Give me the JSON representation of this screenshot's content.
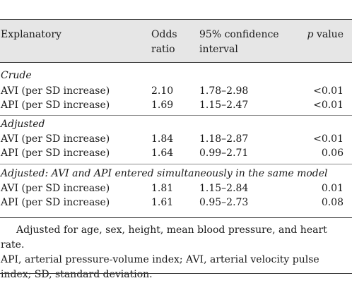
{
  "table": {
    "headers": {
      "explanatory": "Explanatory",
      "odds_ratio": "Odds\nratio",
      "ci": "95% confidence\ninterval",
      "p_value_italic": "p",
      "p_value_rest": " value"
    },
    "sections": [
      {
        "title": "Crude",
        "rows": [
          {
            "label": "AVI (per SD increase)",
            "or": "2.10",
            "ci": "1.78–2.98",
            "p": "<0.01"
          },
          {
            "label": "API (per SD increase)",
            "or": "1.69",
            "ci": "1.15–2.47",
            "p": "<0.01"
          }
        ]
      },
      {
        "title": "Adjusted",
        "rows": [
          {
            "label": "AVI (per SD increase)",
            "or": "1.84",
            "ci": "1.18–2.87",
            "p": "<0.01"
          },
          {
            "label": "API (per SD increase)",
            "or": "1.64",
            "ci": "0.99–2.71",
            "p": "0.06"
          }
        ]
      },
      {
        "title": "Adjusted: AVI and API entered simultaneously in the same model",
        "rows": [
          {
            "label": "AVI (per SD increase)",
            "or": "1.81",
            "ci": "1.15–2.84",
            "p": "0.01"
          },
          {
            "label": "API (per SD increase)",
            "or": "1.61",
            "ci": "0.95–2.73",
            "p": "0.08"
          }
        ]
      }
    ]
  },
  "footnote": {
    "line1": "Adjusted for age, sex, height, mean blood pressure, and heart rate.",
    "line2": "API, arterial pressure-volume index; AVI, arterial velocity pulse index; SD, standard deviation."
  }
}
